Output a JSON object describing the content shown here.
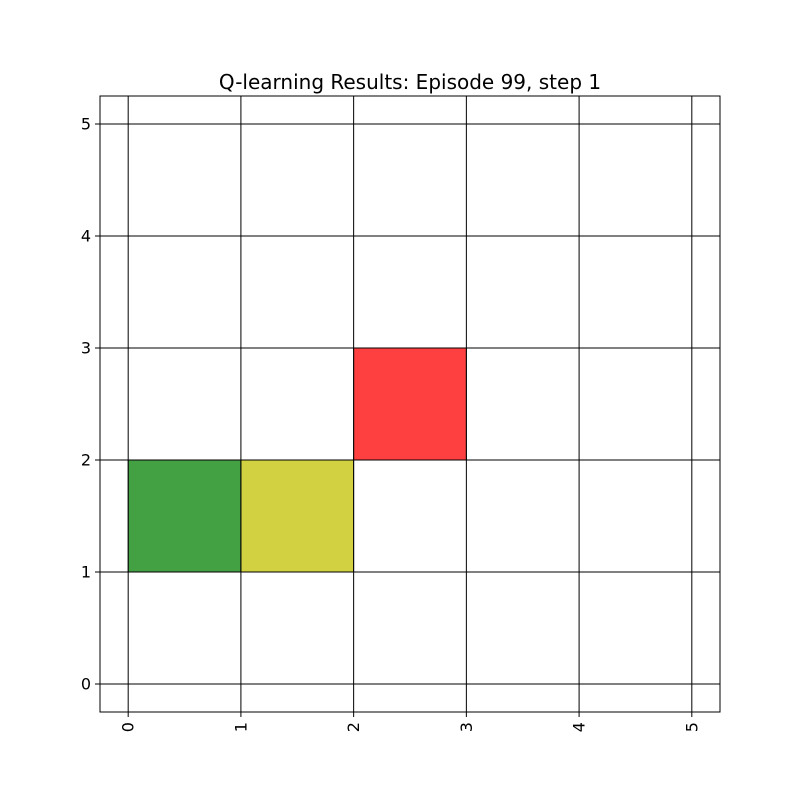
{
  "chart_data": {
    "type": "heatmap",
    "title": "Q-learning Results: Episode 99, step 1",
    "xlabel": "",
    "ylabel": "",
    "xlim": [
      -0.25,
      5.25
    ],
    "ylim": [
      -0.25,
      5.25
    ],
    "xticks": [
      "0",
      "1",
      "2",
      "3",
      "4",
      "5"
    ],
    "yticks": [
      "0",
      "1",
      "2",
      "3",
      "4",
      "5"
    ],
    "xtick_rotation": 90,
    "grid": true,
    "cells": [
      {
        "x": 0,
        "y": 1,
        "color": "#43a143"
      },
      {
        "x": 1,
        "y": 1,
        "color": "#d1d142"
      },
      {
        "x": 2,
        "y": 2,
        "color": "#ff4040"
      }
    ]
  }
}
